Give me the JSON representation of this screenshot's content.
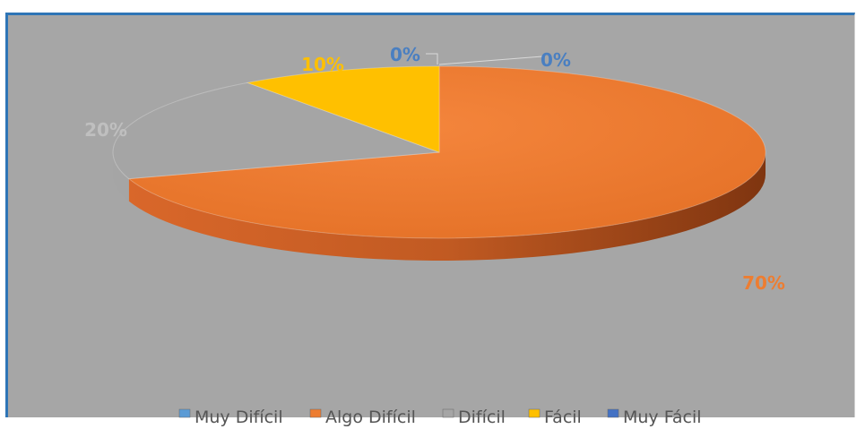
{
  "chart_data": {
    "type": "pie",
    "categories": [
      "Muy Difícil",
      "Algo Difícil",
      "Difícil",
      "Fácil",
      "Muy Fácil"
    ],
    "values": [
      0,
      70,
      20,
      10,
      0
    ],
    "data_labels": [
      "0%",
      "70%",
      "20%",
      "10%",
      "0%"
    ],
    "colors": [
      "#5b9bd5",
      "#ed7d31",
      "#a5a5a5",
      "#ffc000",
      "#4472c4"
    ],
    "label_colors": [
      "#4a7fc1",
      "#ed7d31",
      "#bfbfbf",
      "#ffc000",
      "#4a7fc1"
    ],
    "legend_position": "bottom",
    "style": "3d"
  },
  "colors": {
    "plot_background": "#a6a6a6",
    "frame_border": "#2e75b6"
  }
}
